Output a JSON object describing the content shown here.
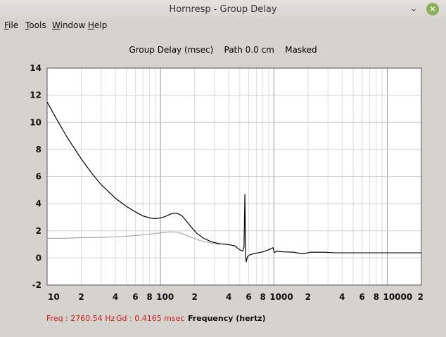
{
  "window": {
    "title": "Hornresp - Group Delay",
    "minimize": "⌄",
    "close": "✕"
  },
  "menu": [
    {
      "u": "F",
      "rest": "ile"
    },
    {
      "u": "T",
      "rest": "ools"
    },
    {
      "u": "W",
      "rest": "indow"
    },
    {
      "u": "H",
      "rest": "elp"
    }
  ],
  "plot_title": "Group Delay (msec)    Path 0.0 cm    Masked",
  "status": {
    "freq": "Freq : 2760.54 Hz",
    "gd": "Gd : 0.4165 msec",
    "xlabel": "Frequency (hertz)"
  },
  "chart_data": {
    "type": "line",
    "title": "Group Delay (msec)    Path 0.0 cm    Masked",
    "xlabel": "Frequency (hertz)",
    "ylabel": "",
    "xscale": "log",
    "xlim": [
      10,
      20000
    ],
    "ylim": [
      -2,
      14
    ],
    "grid": true,
    "y_ticks": [
      -2,
      0,
      2,
      4,
      6,
      8,
      10,
      12,
      14
    ],
    "x_ticks": [
      {
        "v": 10,
        "label": "10"
      },
      {
        "v": 20,
        "label": "2"
      },
      {
        "v": 40,
        "label": "4"
      },
      {
        "v": 60,
        "label": "6"
      },
      {
        "v": 80,
        "label": "8"
      },
      {
        "v": 100,
        "label": "100"
      },
      {
        "v": 200,
        "label": "2"
      },
      {
        "v": 400,
        "label": "4"
      },
      {
        "v": 600,
        "label": "6"
      },
      {
        "v": 800,
        "label": "8"
      },
      {
        "v": 1000,
        "label": "1000"
      },
      {
        "v": 2000,
        "label": "2"
      },
      {
        "v": 4000,
        "label": "4"
      },
      {
        "v": 6000,
        "label": "6"
      },
      {
        "v": 8000,
        "label": "8"
      },
      {
        "v": 10000,
        "label": "10000"
      },
      {
        "v": 20000,
        "label": "2"
      }
    ],
    "series": [
      {
        "color": "#000000",
        "points": [
          [
            10,
            11.5
          ],
          [
            12,
            10.3
          ],
          [
            15,
            8.9
          ],
          [
            20,
            7.3
          ],
          [
            25,
            6.2
          ],
          [
            30,
            5.4
          ],
          [
            40,
            4.4
          ],
          [
            50,
            3.8
          ],
          [
            60,
            3.4
          ],
          [
            70,
            3.1
          ],
          [
            80,
            2.95
          ],
          [
            90,
            2.9
          ],
          [
            100,
            2.95
          ],
          [
            110,
            3.05
          ],
          [
            120,
            3.2
          ],
          [
            130,
            3.3
          ],
          [
            140,
            3.3
          ],
          [
            155,
            3.1
          ],
          [
            170,
            2.7
          ],
          [
            190,
            2.2
          ],
          [
            210,
            1.8
          ],
          [
            240,
            1.45
          ],
          [
            280,
            1.2
          ],
          [
            330,
            1.05
          ],
          [
            400,
            0.98
          ],
          [
            450,
            0.9
          ],
          [
            500,
            0.6
          ],
          [
            530,
            0.5
          ],
          [
            545,
            0.8
          ],
          [
            555,
            4.7
          ],
          [
            562,
            0.4
          ],
          [
            570,
            -0.3
          ],
          [
            585,
            0.1
          ],
          [
            620,
            0.25
          ],
          [
            700,
            0.35
          ],
          [
            800,
            0.45
          ],
          [
            900,
            0.6
          ],
          [
            980,
            0.75
          ],
          [
            1010,
            0.4
          ],
          [
            1060,
            0.5
          ],
          [
            1200,
            0.45
          ],
          [
            1500,
            0.42
          ],
          [
            1800,
            0.3
          ],
          [
            2100,
            0.42
          ],
          [
            2800,
            0.42
          ],
          [
            3500,
            0.38
          ],
          [
            5000,
            0.38
          ],
          [
            8000,
            0.38
          ],
          [
            20000,
            0.38
          ]
        ]
      },
      {
        "color": "#a8a8a8",
        "points": [
          [
            10,
            1.45
          ],
          [
            15,
            1.45
          ],
          [
            20,
            1.5
          ],
          [
            30,
            1.52
          ],
          [
            40,
            1.55
          ],
          [
            60,
            1.65
          ],
          [
            80,
            1.75
          ],
          [
            100,
            1.85
          ],
          [
            120,
            1.92
          ],
          [
            140,
            1.9
          ],
          [
            160,
            1.75
          ],
          [
            190,
            1.5
          ],
          [
            230,
            1.25
          ],
          [
            280,
            1.1
          ],
          [
            330,
            1.0
          ]
        ]
      }
    ]
  }
}
